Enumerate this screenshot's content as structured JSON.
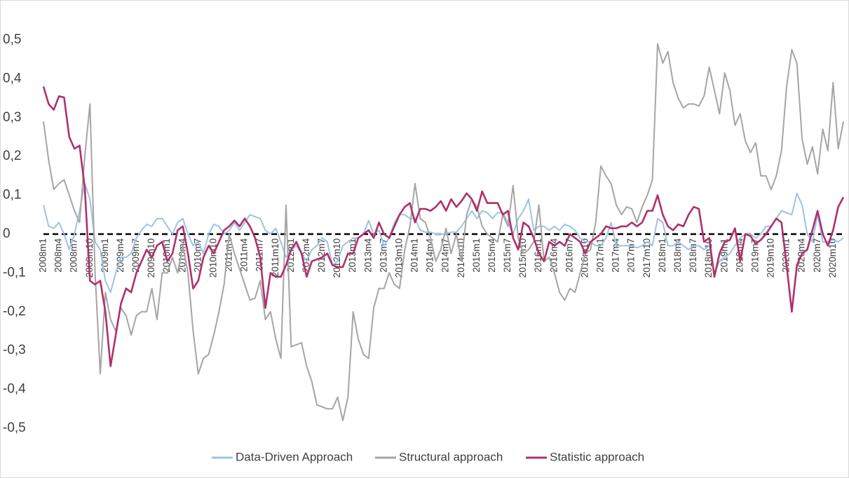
{
  "chart_data": {
    "type": "line",
    "categories": [
      "2008m1",
      null,
      null,
      "2008m4",
      null,
      null,
      "2008m7",
      null,
      null,
      "2008m10",
      null,
      null,
      "2009m1",
      null,
      null,
      "2009m4",
      null,
      null,
      "2009m7",
      null,
      null,
      "2009m10",
      null,
      null,
      "2010m1",
      null,
      null,
      "2010m4",
      null,
      null,
      "2010m7",
      null,
      null,
      "2010m10",
      null,
      null,
      "2011m1",
      null,
      null,
      "2011m4",
      null,
      null,
      "2011m7",
      null,
      null,
      "2011m10",
      null,
      null,
      "2012m1",
      null,
      null,
      "2012m4",
      null,
      null,
      "2012m7",
      null,
      null,
      "2012m10",
      null,
      null,
      "2013m1",
      null,
      null,
      "2013m4",
      null,
      null,
      "2013m7",
      null,
      null,
      "2013m10",
      null,
      null,
      "2014m1",
      null,
      null,
      "2014m4",
      null,
      null,
      "2014m7",
      null,
      null,
      "2014m10",
      null,
      null,
      "2015m1",
      null,
      null,
      "2015m4",
      null,
      null,
      "2015m7",
      null,
      null,
      "2015m10",
      null,
      null,
      "2016m1",
      null,
      null,
      "2016m4",
      null,
      null,
      "2016m7",
      null,
      null,
      "2016m10",
      null,
      null,
      "2017m1",
      null,
      null,
      "2017m4",
      null,
      null,
      "2017m7",
      null,
      null,
      "2017m10",
      null,
      null,
      "2018m1",
      null,
      null,
      "2018m4",
      null,
      null,
      "2018m7",
      null,
      null,
      "2018m10",
      null,
      null,
      "2019m1",
      null,
      null,
      "2019m4",
      null,
      null,
      "2019m7",
      null,
      null,
      "2019m10",
      null,
      null,
      "2020m1",
      null,
      null,
      "2020m4",
      null,
      null,
      "2020m7",
      null,
      null,
      "2020m10",
      null,
      null
    ],
    "series": [
      {
        "name": "Data-Driven Approach",
        "color": "#9dc3e6",
        "values": [
          0.075,
          0.02,
          0.015,
          0.03,
          0.0,
          -0.04,
          0.0,
          0.06,
          0.13,
          0.09,
          -0.02,
          -0.04,
          -0.12,
          -0.15,
          -0.1,
          -0.06,
          -0.06,
          -0.05,
          -0.01,
          0.01,
          0.025,
          0.02,
          0.04,
          0.04,
          0.02,
          0.0,
          0.03,
          0.04,
          0.0,
          -0.03,
          -0.02,
          -0.05,
          0.0,
          0.025,
          0.02,
          0.0,
          0.01,
          0.03,
          0.01,
          0.03,
          0.05,
          0.045,
          0.04,
          0.01,
          0.0,
          0.015,
          -0.02,
          -0.06,
          -0.04,
          -0.03,
          -0.05,
          -0.07,
          -0.04,
          -0.03,
          -0.01,
          -0.02,
          -0.08,
          -0.07,
          -0.03,
          -0.02,
          -0.01,
          -0.01,
          0.0,
          0.035,
          0.0,
          0.01,
          -0.03,
          -0.01,
          0.03,
          0.05,
          0.05,
          0.04,
          0.04,
          0.01,
          0.005,
          0.005,
          0.0,
          0.0,
          0.0,
          0.005,
          0.005,
          0.02,
          0.04,
          0.06,
          0.04,
          0.06,
          0.055,
          0.04,
          0.055,
          0.055,
          0.03,
          0.0,
          0.04,
          0.06,
          0.09,
          0.01,
          0.02,
          0.02,
          0.01,
          0.02,
          0.01,
          0.025,
          0.02,
          0.01,
          -0.01,
          -0.02,
          -0.02,
          -0.03,
          -0.03,
          -0.01,
          0.03,
          -0.03,
          -0.03,
          -0.03,
          -0.03,
          -0.035,
          -0.03,
          -0.02,
          -0.03,
          0.04,
          0.03,
          -0.03,
          -0.03,
          -0.02,
          -0.03,
          -0.04,
          -0.03,
          -0.03,
          -0.04,
          -0.03,
          -0.1,
          -0.07,
          -0.06,
          -0.05,
          -0.03,
          -0.01,
          0.0,
          0.0,
          -0.01,
          0.0,
          0.02,
          0.02,
          0.04,
          0.06,
          0.055,
          0.05,
          0.105,
          0.075,
          0.0,
          -0.02,
          0.05,
          -0.02,
          -0.02,
          -0.015,
          -0.02,
          -0.01
        ]
      },
      {
        "name": "Structural approach",
        "color": "#a5a5a5",
        "values": [
          0.29,
          0.19,
          0.115,
          0.13,
          0.14,
          0.1,
          0.06,
          0.03,
          0.2,
          0.335,
          -0.1,
          -0.36,
          -0.15,
          -0.22,
          -0.25,
          -0.19,
          -0.21,
          -0.26,
          -0.21,
          -0.2,
          -0.2,
          -0.14,
          -0.22,
          -0.1,
          -0.1,
          -0.06,
          -0.1,
          -0.03,
          -0.1,
          -0.25,
          -0.36,
          -0.32,
          -0.31,
          -0.26,
          -0.2,
          -0.13,
          0.0,
          -0.05,
          -0.09,
          -0.13,
          -0.17,
          -0.165,
          -0.12,
          -0.22,
          -0.2,
          -0.27,
          -0.32,
          0.075,
          -0.29,
          -0.285,
          -0.28,
          -0.34,
          -0.38,
          -0.44,
          -0.445,
          -0.45,
          -0.45,
          -0.42,
          -0.48,
          -0.42,
          -0.2,
          -0.27,
          -0.31,
          -0.32,
          -0.19,
          -0.14,
          -0.14,
          -0.1,
          -0.13,
          -0.14,
          -0.04,
          0.02,
          0.13,
          0.04,
          0.03,
          -0.01,
          -0.07,
          -0.04,
          0.015,
          -0.05,
          0.0,
          -0.07,
          0.05,
          0.09,
          0.07,
          0.02,
          0.0,
          -0.01,
          -0.02,
          0.05,
          0.02,
          0.125,
          -0.01,
          -0.05,
          -0.04,
          -0.02,
          0.075,
          -0.07,
          -0.06,
          -0.1,
          -0.15,
          -0.17,
          -0.14,
          -0.15,
          -0.1,
          -0.05,
          -0.04,
          0.03,
          0.175,
          0.15,
          0.13,
          0.075,
          0.05,
          0.07,
          0.065,
          0.03,
          0.07,
          0.1,
          0.14,
          0.49,
          0.44,
          0.47,
          0.39,
          0.35,
          0.325,
          0.335,
          0.335,
          0.33,
          0.355,
          0.43,
          0.37,
          0.31,
          0.415,
          0.37,
          0.28,
          0.31,
          0.24,
          0.21,
          0.235,
          0.15,
          0.15,
          0.115,
          0.15,
          0.215,
          0.38,
          0.475,
          0.44,
          0.245,
          0.18,
          0.225,
          0.155,
          0.27,
          0.215,
          0.39,
          0.22,
          0.29
        ]
      },
      {
        "name": "Statistic approach",
        "color": "#b0306a",
        "values": [
          0.38,
          0.335,
          0.32,
          0.355,
          0.352,
          0.25,
          0.22,
          0.228,
          0.12,
          -0.12,
          -0.13,
          -0.12,
          -0.2,
          -0.34,
          -0.26,
          -0.18,
          -0.14,
          -0.15,
          -0.1,
          -0.07,
          -0.04,
          -0.06,
          -0.03,
          -0.02,
          -0.07,
          -0.05,
          0.01,
          0.02,
          -0.05,
          -0.14,
          -0.12,
          -0.06,
          -0.03,
          -0.05,
          -0.02,
          0.01,
          0.02,
          0.035,
          0.02,
          0.04,
          0.02,
          -0.01,
          -0.06,
          -0.19,
          -0.1,
          -0.11,
          -0.11,
          -0.08,
          -0.04,
          -0.02,
          -0.05,
          -0.11,
          -0.07,
          -0.065,
          -0.06,
          -0.05,
          -0.08,
          -0.085,
          -0.085,
          -0.05,
          -0.05,
          -0.01,
          0.0,
          0.01,
          -0.01,
          0.03,
          0.0,
          -0.01,
          0.02,
          0.05,
          0.07,
          0.08,
          0.03,
          0.065,
          0.065,
          0.06,
          0.07,
          0.085,
          0.06,
          0.09,
          0.07,
          0.085,
          0.105,
          0.09,
          0.06,
          0.11,
          0.08,
          0.08,
          0.08,
          0.05,
          0.06,
          -0.01,
          -0.04,
          0.03,
          0.02,
          -0.01,
          -0.05,
          -0.07,
          -0.02,
          -0.03,
          -0.02,
          -0.03,
          0.0,
          -0.01,
          -0.02,
          -0.05,
          -0.02,
          -0.01,
          0.0,
          0.02,
          0.015,
          0.015,
          0.02,
          0.02,
          0.03,
          0.02,
          0.03,
          0.06,
          0.06,
          0.1,
          0.05,
          0.02,
          0.01,
          0.025,
          0.02,
          0.05,
          0.07,
          0.065,
          -0.02,
          -0.01,
          -0.11,
          -0.05,
          -0.02,
          -0.015,
          0.015,
          -0.07,
          0.0,
          -0.005,
          -0.025,
          -0.015,
          0.0,
          0.02,
          0.04,
          0.03,
          -0.08,
          -0.2,
          -0.08,
          -0.05,
          -0.04,
          0.01,
          0.06,
          0.0,
          -0.03,
          0.01,
          0.07,
          0.095
        ]
      }
    ],
    "ylim": [
      -0.5,
      0.5
    ],
    "yticks": [
      {
        "value": -0.5,
        "label": "-0,5"
      },
      {
        "value": -0.4,
        "label": "-0,4"
      },
      {
        "value": -0.3,
        "label": "-0,3"
      },
      {
        "value": -0.2,
        "label": "-0,2"
      },
      {
        "value": -0.1,
        "label": "-0,1"
      },
      0,
      {
        "value": 0.1,
        "label": "0,1"
      },
      {
        "value": 0.2,
        "label": "0,2"
      },
      {
        "value": 0.3,
        "label": "0,3"
      },
      {
        "value": 0.4,
        "label": "0,4"
      },
      {
        "value": 0.5,
        "label": "0,5"
      }
    ],
    "zero_line": true,
    "grid": false,
    "legend": "bottom"
  }
}
